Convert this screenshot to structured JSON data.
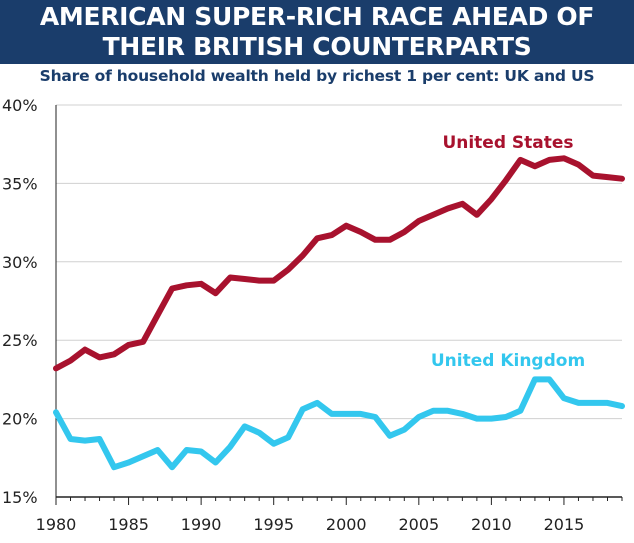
{
  "title_lines": [
    "AMERICAN SUPER-RICH RACE AHEAD OF",
    "THEIR BRITISH COUNTERPARTS"
  ],
  "subtitle": "Share of household wealth held by richest 1 per cent: UK and US",
  "colors": {
    "header_bg": "#1a3d6b",
    "us": "#a8122e",
    "uk": "#33c7ee",
    "grid": "#d0d0d0"
  },
  "chart_data": {
    "type": "line",
    "title": "AMERICAN SUPER-RICH RACE AHEAD OF THEIR BRITISH COUNTERPARTS",
    "subtitle": "Share of household wealth held by richest 1 per cent: UK and US",
    "xlabel": "",
    "ylabel": "",
    "xlim": [
      1980,
      2019
    ],
    "ylim": [
      15,
      40
    ],
    "x_ticks": [
      1980,
      1985,
      1990,
      1995,
      2000,
      2005,
      2010,
      2015
    ],
    "y_ticks": [
      15,
      20,
      25,
      30,
      35,
      40
    ],
    "y_tick_labels": [
      "15%",
      "20%",
      "25%",
      "30%",
      "35%",
      "40%"
    ],
    "grid": "horizontal",
    "legend": "direct labels on lines",
    "x": [
      1980,
      1981,
      1982,
      1983,
      1984,
      1985,
      1986,
      1987,
      1988,
      1989,
      1990,
      1991,
      1992,
      1993,
      1994,
      1995,
      1996,
      1997,
      1998,
      1999,
      2000,
      2001,
      2002,
      2003,
      2004,
      2005,
      2006,
      2007,
      2008,
      2009,
      2010,
      2011,
      2012,
      2013,
      2014,
      2015,
      2016,
      2017,
      2018,
      2019
    ],
    "series": [
      {
        "name": "United States",
        "color": "#a8122e",
        "values": [
          23.2,
          23.7,
          24.4,
          23.9,
          24.1,
          24.7,
          24.9,
          26.6,
          28.3,
          28.5,
          28.6,
          28.0,
          29.0,
          28.9,
          28.8,
          28.8,
          29.5,
          30.4,
          31.5,
          31.7,
          32.3,
          31.9,
          31.4,
          31.4,
          31.9,
          32.6,
          33.0,
          33.4,
          33.7,
          33.0,
          34.0,
          35.2,
          36.5,
          36.1,
          36.5,
          36.6,
          36.2,
          35.5,
          35.4,
          35.3
        ]
      },
      {
        "name": "United Kingdom",
        "color": "#33c7ee",
        "values": [
          20.4,
          18.7,
          18.6,
          18.7,
          16.9,
          17.2,
          17.6,
          18.0,
          16.9,
          18.0,
          17.9,
          17.2,
          18.2,
          19.5,
          19.1,
          18.4,
          18.8,
          20.6,
          21.0,
          20.3,
          20.3,
          20.3,
          20.1,
          18.9,
          19.3,
          20.1,
          20.5,
          20.5,
          20.3,
          20.0,
          20.0,
          20.1,
          20.5,
          22.5,
          22.5,
          21.3,
          21.0,
          21.0,
          21.0,
          20.8
        ]
      }
    ]
  }
}
